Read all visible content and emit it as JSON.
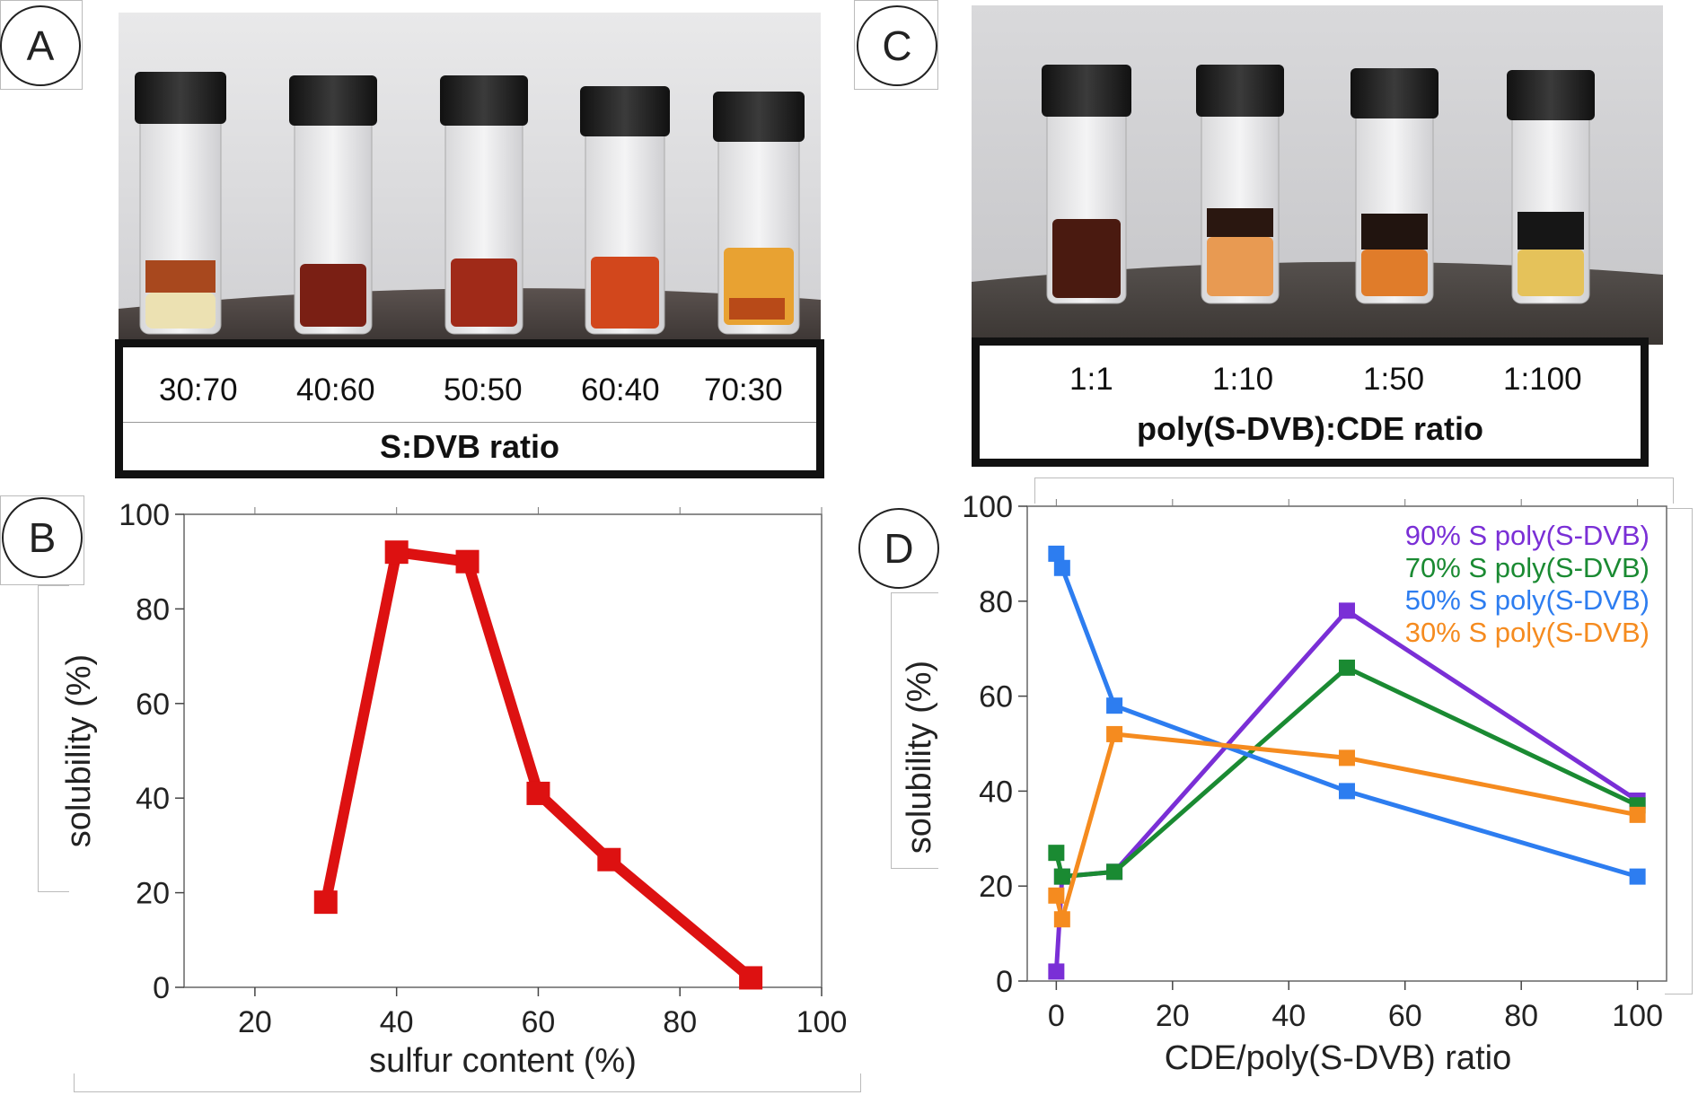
{
  "panels": {
    "a": {
      "letter": "A",
      "ratios": [
        "30:70",
        "40:60",
        "50:50",
        "60:40",
        "70:30"
      ],
      "title": "S:DVB ratio"
    },
    "b": {
      "letter": "B"
    },
    "c": {
      "letter": "C",
      "ratios": [
        "1:1",
        "1:10",
        "1:50",
        "1:100"
      ],
      "title": "poly(S-DVB):CDE ratio"
    },
    "d": {
      "letter": "D"
    }
  },
  "chart_data": [
    {
      "type": "line",
      "panel": "B",
      "title": "",
      "xlabel": "sulfur content (%)",
      "ylabel": "solubility (%)",
      "xlim": [
        10,
        100
      ],
      "ylim": [
        0,
        100
      ],
      "xticks": [
        20,
        40,
        60,
        80,
        100
      ],
      "yticks": [
        0,
        20,
        40,
        60,
        80,
        100
      ],
      "series": [
        {
          "name": "solubility",
          "color": "#dd1111",
          "x": [
            30,
            40,
            50,
            60,
            70,
            90
          ],
          "values": [
            18,
            92,
            90,
            41,
            27,
            2
          ]
        }
      ]
    },
    {
      "type": "line",
      "panel": "D",
      "title": "",
      "xlabel": "CDE/poly(S-DVB) ratio",
      "ylabel": "solubility (%)",
      "xlim": [
        -5,
        105
      ],
      "ylim": [
        0,
        100
      ],
      "xticks": [
        0,
        20,
        40,
        60,
        80,
        100
      ],
      "yticks": [
        0,
        20,
        40,
        60,
        80,
        100
      ],
      "legend_position": "top-right",
      "series": [
        {
          "name": "90% S poly(S-DVB)",
          "color": "#7a2fd6",
          "x": [
            0,
            1,
            10,
            50,
            100
          ],
          "values": [
            2,
            22,
            23,
            78,
            38
          ]
        },
        {
          "name": "70% S poly(S-DVB)",
          "color": "#1a8a32",
          "x": [
            0,
            1,
            10,
            50,
            100
          ],
          "values": [
            27,
            22,
            23,
            66,
            37
          ]
        },
        {
          "name": "50% S poly(S-DVB)",
          "color": "#2d7df0",
          "x": [
            0,
            1,
            10,
            50,
            100
          ],
          "values": [
            90,
            87,
            58,
            40,
            22
          ]
        },
        {
          "name": "30% S poly(S-DVB)",
          "color": "#f58b1f",
          "x": [
            0,
            1,
            10,
            50,
            100
          ],
          "values": [
            18,
            13,
            52,
            47,
            35
          ]
        }
      ]
    }
  ]
}
